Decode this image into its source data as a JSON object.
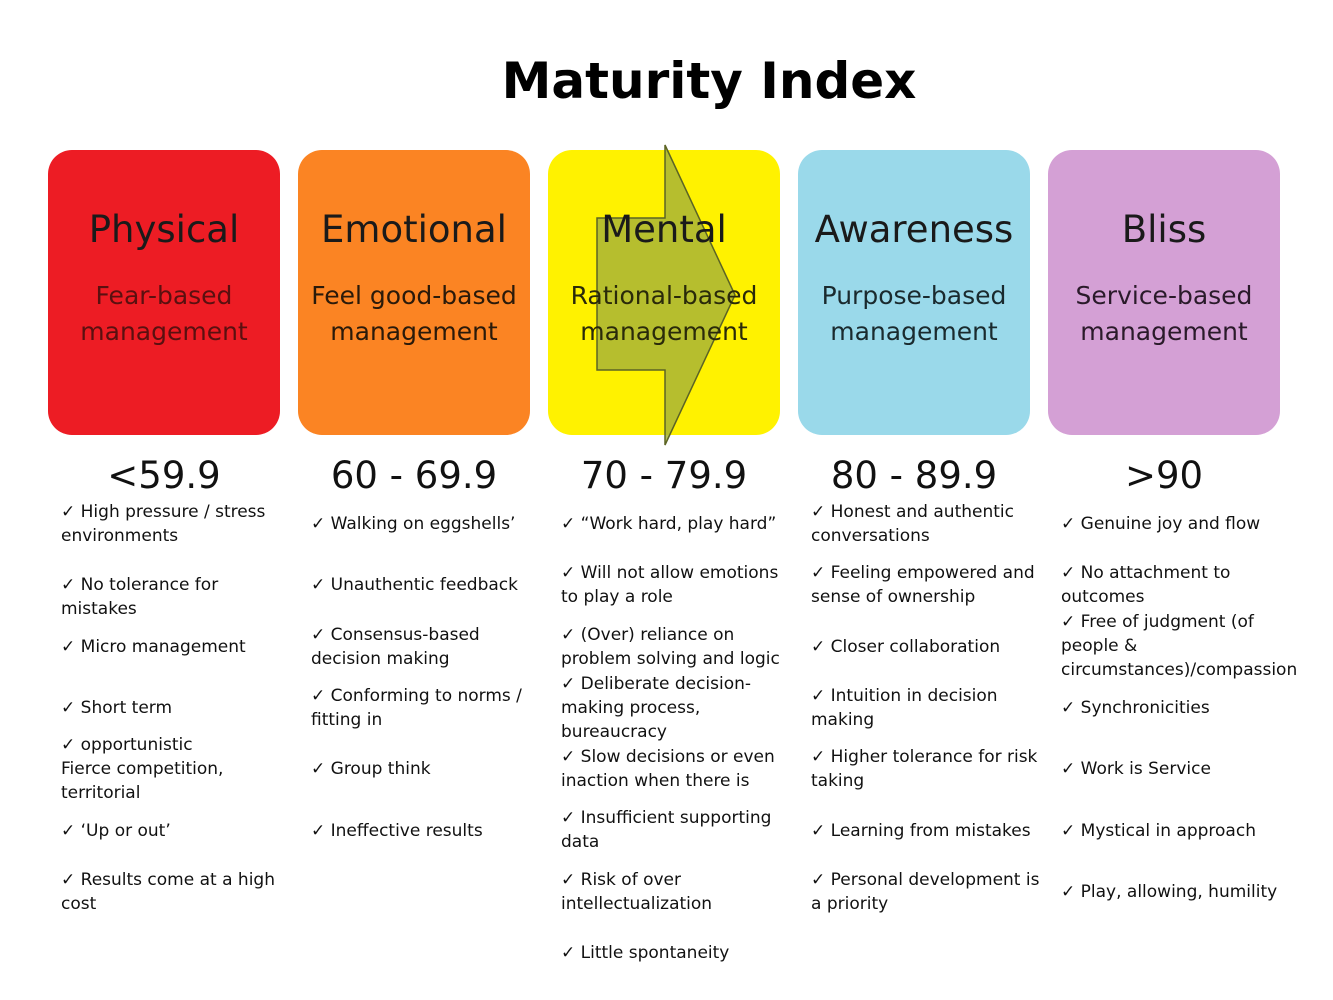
{
  "title": "Maturity Index",
  "columns": [
    {
      "name": "Physical",
      "subtitle": "Fear-based management",
      "range": "<59.9",
      "color": "#ed1c24",
      "subtitle_color": "#5a1010",
      "items": [
        "✓ High pressure / stress environments",
        "✓ No tolerance for mistakes",
        "✓ Micro management",
        "✓ Short term",
        "✓ opportunistic\nFierce competition, territorial",
        "✓ ‘Up or out’",
        "✓ Results come at a high cost"
      ]
    },
    {
      "name": "Emotional",
      "subtitle": "Feel good-based management",
      "range": "60 - 69.9",
      "color": "#fb8423",
      "subtitle_color": "#2a1a0a",
      "items": [
        "✓ Walking on eggshells’",
        "✓ Unauthentic feedback",
        "✓ Consensus-based decision making",
        "✓ Conforming to norms / fitting in",
        "✓ Group think",
        "✓ Ineffective results"
      ]
    },
    {
      "name": "Mental",
      "subtitle": "Rational-based management",
      "range": "70 - 79.9",
      "color": "#fff200",
      "subtitle_color": "#2a2a0a",
      "items": [
        "✓ “Work hard, play hard”",
        "✓  Will not allow emotions to play a role",
        "✓ (Over) reliance on problem solving and logic",
        "✓ Deliberate decision-making process, bureaucracy",
        "✓ Slow decisions or even inaction when there is",
        "✓ Insufficient supporting data",
        "✓ Risk of over intellectualization",
        "✓ Little spontaneity"
      ]
    },
    {
      "name": "Awareness",
      "subtitle": "Purpose-based management",
      "range": "80 - 89.9",
      "color": "#9ad9ea",
      "subtitle_color": "#1a2a2e",
      "items": [
        "✓ Honest and authentic conversations",
        "✓ Feeling empowered and sense of ownership",
        "✓ Closer collaboration",
        "✓ Intuition in decision making",
        "✓ Higher tolerance for risk taking",
        "✓ Learning from mistakes",
        "✓ Personal development is a priority"
      ]
    },
    {
      "name": "Bliss",
      "subtitle": "Service-based management",
      "range": ">90",
      "color": "#d4a0d5",
      "subtitle_color": "#2a1a2a",
      "items": [
        "✓ Genuine joy and flow",
        "✓ No attachment to outcomes",
        "✓ Free of judgment (of people & circumstances)/compassion",
        "✓ Synchronicities",
        "✓ Work is Service",
        "✓ Mystical in approach",
        "✓ Play, allowing, humility"
      ]
    }
  ]
}
